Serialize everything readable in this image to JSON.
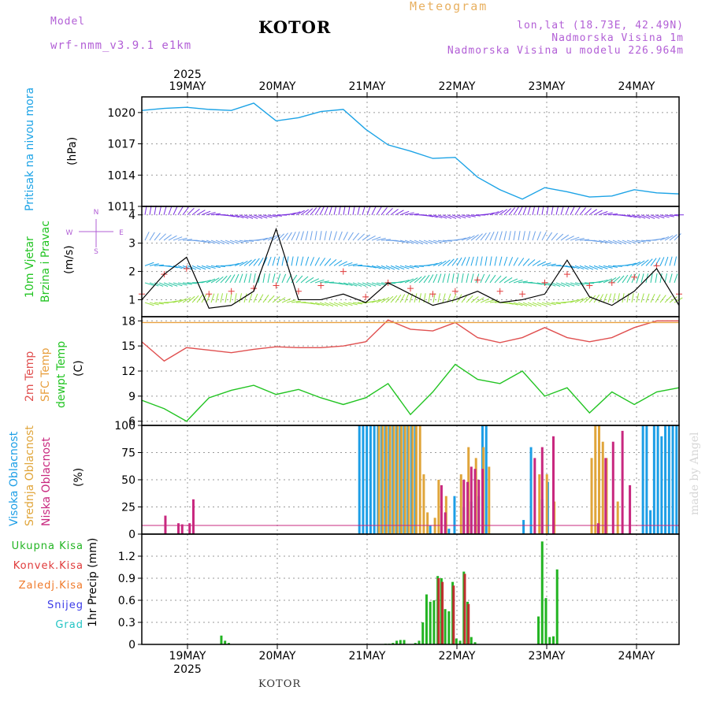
{
  "header": {
    "model_label": "Model",
    "model_name": "wrf-nmm_v3.9.1 e1km",
    "station": "KOTOR",
    "product": "Meteogram",
    "coords": "lon,lat (18.73E, 42.49N)",
    "elevation": "Nadmorska Visina 1m",
    "model_elevation": "Nadmorska Visina u modelu 226.964m"
  },
  "footer": {
    "station": "KOTOR",
    "watermark": "made by Angel"
  },
  "chart_data": [
    {
      "type": "line",
      "panel": "pressure",
      "ylabel": "Pritisak na nivou mora",
      "unit": "(hPa)",
      "ylim": [
        1011,
        1021.5
      ],
      "yticks": [
        "1020",
        "1017",
        "1014",
        "1011"
      ],
      "ytick_values": [
        1020,
        1017,
        1014,
        1011
      ],
      "xticks_top": [
        "19MAY",
        "20MAY",
        "21MAY",
        "22MAY",
        "23MAY",
        "24MAY"
      ],
      "year_top": "2025",
      "x_hours": [
        0,
        6,
        12,
        18,
        24,
        30,
        36,
        42,
        48,
        54,
        60,
        66,
        72,
        78,
        84,
        90,
        96,
        102,
        108,
        114,
        120,
        126,
        132,
        138,
        144
      ],
      "series": [
        {
          "color": "#1ca3e6",
          "values": [
            1020.2,
            1020.4,
            1020.5,
            1020.3,
            1020.2,
            1020.9,
            1019.2,
            1019.5,
            1020.1,
            1020.3,
            1018.4,
            1016.9,
            1016.3,
            1015.6,
            1015.7,
            1013.8,
            1012.6,
            1011.7,
            1012.8,
            1012.4,
            1011.9,
            1012.0,
            1012.6,
            1012.3,
            1012.2
          ]
        }
      ]
    },
    {
      "type": "line",
      "panel": "wind",
      "ylabel_1": "10m Vjetar",
      "ylabel_2": "Brzina i Pravac",
      "unit": "(m/s)",
      "compass": {
        "n": "N",
        "s": "S",
        "w": "W",
        "e": "E"
      },
      "ylim": [
        0.4,
        4.3
      ],
      "yticks": [
        "4",
        "3",
        "2",
        "1"
      ],
      "ytick_values": [
        4,
        3,
        2,
        1
      ],
      "x_hours": [
        0,
        6,
        12,
        18,
        24,
        30,
        36,
        42,
        48,
        54,
        60,
        66,
        72,
        78,
        84,
        90,
        96,
        102,
        108,
        114,
        120,
        126,
        132,
        138,
        144
      ],
      "series": [
        {
          "name": "wind speed",
          "color": "#000000",
          "values": [
            1.0,
            1.9,
            2.5,
            0.7,
            0.8,
            1.3,
            3.5,
            1.0,
            1.0,
            1.2,
            0.9,
            1.6,
            1.2,
            0.8,
            1.0,
            1.3,
            0.9,
            1.0,
            1.2,
            2.4,
            1.1,
            0.8,
            1.3,
            2.1,
            0.8
          ]
        },
        {
          "name": "gust",
          "color": "#e23b3b",
          "values": [
            1.2,
            1.9,
            2.1,
            1.2,
            1.3,
            1.4,
            1.5,
            1.3,
            1.5,
            2.0,
            1.1,
            1.6,
            1.4,
            1.2,
            1.3,
            1.7,
            1.3,
            1.2,
            1.6,
            1.9,
            1.5,
            1.6,
            1.8,
            2.2,
            1.2
          ]
        }
      ]
    },
    {
      "type": "line",
      "panel": "temperature",
      "ylabel_1": "2m Temp",
      "ylabel_2": "SFC Temp",
      "ylabel_3": "dewpt Temp",
      "unit": "(C)",
      "ylim": [
        5.5,
        18.5
      ],
      "yticks": [
        "18",
        "15",
        "12",
        "9",
        "6"
      ],
      "ytick_values": [
        18,
        15,
        12,
        9,
        6
      ],
      "x_hours": [
        0,
        6,
        12,
        18,
        24,
        30,
        36,
        42,
        48,
        54,
        60,
        66,
        72,
        78,
        84,
        90,
        96,
        102,
        108,
        114,
        120,
        126,
        132,
        138,
        144
      ],
      "series": [
        {
          "name": "2m Temp",
          "color": "#e05050",
          "values": [
            15.5,
            13.2,
            14.8,
            14.5,
            14.2,
            14.6,
            14.9,
            14.8,
            14.8,
            15.0,
            15.5,
            18.1,
            17.0,
            16.8,
            17.8,
            16.0,
            15.4,
            16.0,
            17.2,
            16.0,
            15.5,
            16.0,
            17.2,
            18.0,
            18.0
          ]
        },
        {
          "name": "SFC Temp",
          "color": "#e8a040",
          "values": [
            17.8,
            17.8,
            17.8,
            17.8,
            17.8,
            17.8,
            17.8,
            17.8,
            17.8,
            17.8,
            17.8,
            17.8,
            17.8,
            17.8,
            17.8,
            17.8,
            17.8,
            17.8,
            17.8,
            17.8,
            17.8,
            17.8,
            17.8,
            17.8,
            17.8
          ]
        },
        {
          "name": "dewpt Temp",
          "color": "#22c422",
          "values": [
            8.5,
            7.5,
            6.0,
            8.8,
            9.7,
            10.3,
            9.2,
            9.8,
            8.8,
            8.0,
            8.8,
            10.5,
            6.8,
            9.5,
            12.8,
            11.0,
            10.5,
            12.0,
            9.0,
            10.0,
            7.0,
            9.5,
            8.0,
            9.5,
            10.0
          ]
        }
      ]
    },
    {
      "type": "bar",
      "panel": "clouds",
      "ylabel_1": "Visoka Oblacnost",
      "ylabel_2": "Srednja Oblacnost",
      "ylabel_3": "Niska Oblacnost",
      "unit": "(%)",
      "ylim": [
        0,
        100
      ],
      "yticks": [
        "100",
        "75",
        "50",
        "25",
        "0"
      ],
      "ytick_values": [
        100,
        75,
        50,
        25,
        0
      ],
      "series": [
        {
          "name": "Visoka Oblacnost",
          "color": "#1c9ee6",
          "points": [
            [
              58.0,
              100
            ],
            [
              59.0,
              100
            ],
            [
              60.0,
              100
            ],
            [
              61.0,
              100
            ],
            [
              62.0,
              100
            ],
            [
              63.0,
              100
            ],
            [
              64.0,
              100
            ],
            [
              65.0,
              100
            ],
            [
              66.0,
              100
            ],
            [
              67.0,
              100
            ],
            [
              68.0,
              100
            ],
            [
              69.0,
              100
            ],
            [
              70.0,
              100
            ],
            [
              71.0,
              100
            ],
            [
              72.0,
              100
            ],
            [
              73.0,
              100
            ],
            [
              77.0,
              8
            ],
            [
              82.0,
              5
            ],
            [
              83.5,
              35
            ],
            [
              86.0,
              25
            ],
            [
              88.0,
              30
            ],
            [
              90.0,
              35
            ],
            [
              91.0,
              100
            ],
            [
              92.0,
              100
            ],
            [
              102.0,
              13
            ],
            [
              104.0,
              80
            ],
            [
              107.0,
              32
            ],
            [
              108.5,
              48
            ],
            [
              134.0,
              100
            ],
            [
              135.0,
              100
            ],
            [
              136.0,
              22
            ],
            [
              137.0,
              100
            ],
            [
              138.0,
              100
            ],
            [
              139.0,
              90
            ],
            [
              140.0,
              100
            ],
            [
              141.0,
              100
            ],
            [
              142.0,
              100
            ],
            [
              143.0,
              100
            ]
          ]
        },
        {
          "name": "Srednja Oblacnost",
          "color": "#e0a53a",
          "points": [
            [
              63.0,
              100
            ],
            [
              64.0,
              100
            ],
            [
              65.0,
              100
            ],
            [
              66.0,
              100
            ],
            [
              67.0,
              100
            ],
            [
              68.0,
              100
            ],
            [
              69.0,
              100
            ],
            [
              70.0,
              100
            ],
            [
              71.0,
              100
            ],
            [
              72.0,
              100
            ],
            [
              73.0,
              100
            ],
            [
              74.0,
              100
            ],
            [
              75.0,
              55
            ],
            [
              76.0,
              20
            ],
            [
              78.0,
              15
            ],
            [
              79.0,
              50
            ],
            [
              81.0,
              35
            ],
            [
              85.0,
              55
            ],
            [
              87.0,
              80
            ],
            [
              89.0,
              70
            ],
            [
              91.0,
              80
            ],
            [
              92.5,
              62
            ],
            [
              106.0,
              55
            ],
            [
              108.0,
              55
            ],
            [
              110.0,
              30
            ],
            [
              120.0,
              70
            ],
            [
              121.0,
              100
            ],
            [
              122.0,
              100
            ],
            [
              123.0,
              85
            ],
            [
              124.0,
              70
            ],
            [
              127.0,
              30
            ]
          ]
        },
        {
          "name": "Niska Oblacnost",
          "color": "#c8287f",
          "points": [
            [
              5.5,
              17
            ],
            [
              9.0,
              10
            ],
            [
              10.0,
              9
            ],
            [
              12.0,
              10
            ],
            [
              13.0,
              32
            ],
            [
              79.5,
              45
            ],
            [
              80.5,
              20
            ],
            [
              85.5,
              50
            ],
            [
              86.5,
              48
            ],
            [
              87.5,
              62
            ],
            [
              88.5,
              60
            ],
            [
              89.5,
              50
            ],
            [
              90.5,
              60
            ],
            [
              104.5,
              70
            ],
            [
              106.5,
              80
            ],
            [
              109.5,
              90
            ],
            [
              121.5,
              10
            ],
            [
              123.5,
              70
            ],
            [
              125.5,
              85
            ],
            [
              128.0,
              95
            ],
            [
              130.0,
              45
            ]
          ]
        }
      ]
    },
    {
      "type": "bar",
      "panel": "precipitation",
      "ylabel": "1hr Precip (mm)",
      "legend": [
        "Ukupna Kisa",
        "Konvek.Kisa",
        "Zaledj.Kisa",
        "Snijeg",
        "Grad"
      ],
      "legend_colors": [
        "#22b422",
        "#e03a3a",
        "#f07a2a",
        "#3a3ae8",
        "#22c4c4"
      ],
      "ylim": [
        0,
        1.5
      ],
      "yticks": [
        "1.2",
        "0.9",
        "0.6",
        "0.3",
        "0"
      ],
      "ytick_values": [
        1.2,
        0.9,
        0.6,
        0.3,
        0
      ],
      "xticks_bottom": [
        "19MAY",
        "20MAY",
        "21MAY",
        "22MAY",
        "23MAY",
        "24MAY"
      ],
      "year_bottom": "2025",
      "series": [
        {
          "name": "Ukupna Kisa",
          "color": "#22b422",
          "points": [
            [
              21.0,
              0.12
            ],
            [
              22.0,
              0.05
            ],
            [
              23.0,
              0.02
            ],
            [
              65.0,
              0.01
            ],
            [
              66.0,
              0.01
            ],
            [
              67.0,
              0.02
            ],
            [
              68.0,
              0.05
            ],
            [
              69.0,
              0.06
            ],
            [
              70.0,
              0.06
            ],
            [
              73.0,
              0.02
            ],
            [
              74.0,
              0.05
            ],
            [
              75.0,
              0.3
            ],
            [
              76.0,
              0.68
            ],
            [
              77.0,
              0.58
            ],
            [
              78.0,
              0.6
            ],
            [
              79.0,
              0.93
            ],
            [
              80.0,
              0.9
            ],
            [
              81.0,
              0.48
            ],
            [
              82.0,
              0.45
            ],
            [
              83.0,
              0.85
            ],
            [
              84.0,
              0.08
            ],
            [
              85.0,
              0.05
            ],
            [
              86.0,
              0.99
            ],
            [
              87.0,
              0.58
            ],
            [
              88.0,
              0.1
            ],
            [
              89.0,
              0.03
            ],
            [
              106.0,
              0.38
            ],
            [
              107.0,
              1.4
            ],
            [
              108.0,
              0.63
            ],
            [
              109.0,
              0.1
            ],
            [
              110.0,
              0.11
            ],
            [
              111.0,
              1.02
            ]
          ]
        },
        {
          "name": "Konvek.Kisa",
          "color": "#c03030",
          "points": [
            [
              79.0,
              0.9
            ],
            [
              80.0,
              0.85
            ],
            [
              83.0,
              0.8
            ],
            [
              86.0,
              0.96
            ],
            [
              87.0,
              0.55
            ]
          ]
        }
      ]
    }
  ]
}
